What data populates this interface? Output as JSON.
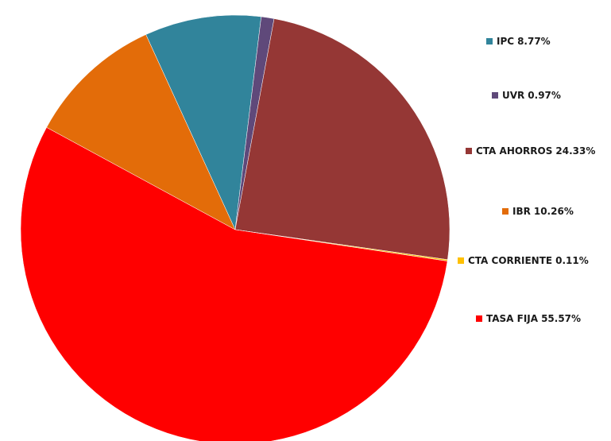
{
  "chart_data": {
    "type": "pie",
    "categories": [
      "IPC",
      "UVR",
      "CTA AHORROS",
      "IBR",
      "CTA CORRIENTE",
      "TASA FIJA"
    ],
    "values": [
      8.77,
      0.97,
      24.33,
      10.26,
      0.11,
      55.57
    ],
    "value_labels": [
      "8.77%",
      "0.97%",
      "24.33%",
      "10.26%",
      "0.11%",
      "55.57%"
    ],
    "colors": [
      "#31849b",
      "#5f497a",
      "#953735",
      "#e36c09",
      "#ffc000",
      "#ff0000"
    ],
    "order": [
      "IPC",
      "UVR",
      "CTA AHORROS",
      "CTA CORRIENTE",
      "TASA FIJA",
      "IBR"
    ]
  }
}
